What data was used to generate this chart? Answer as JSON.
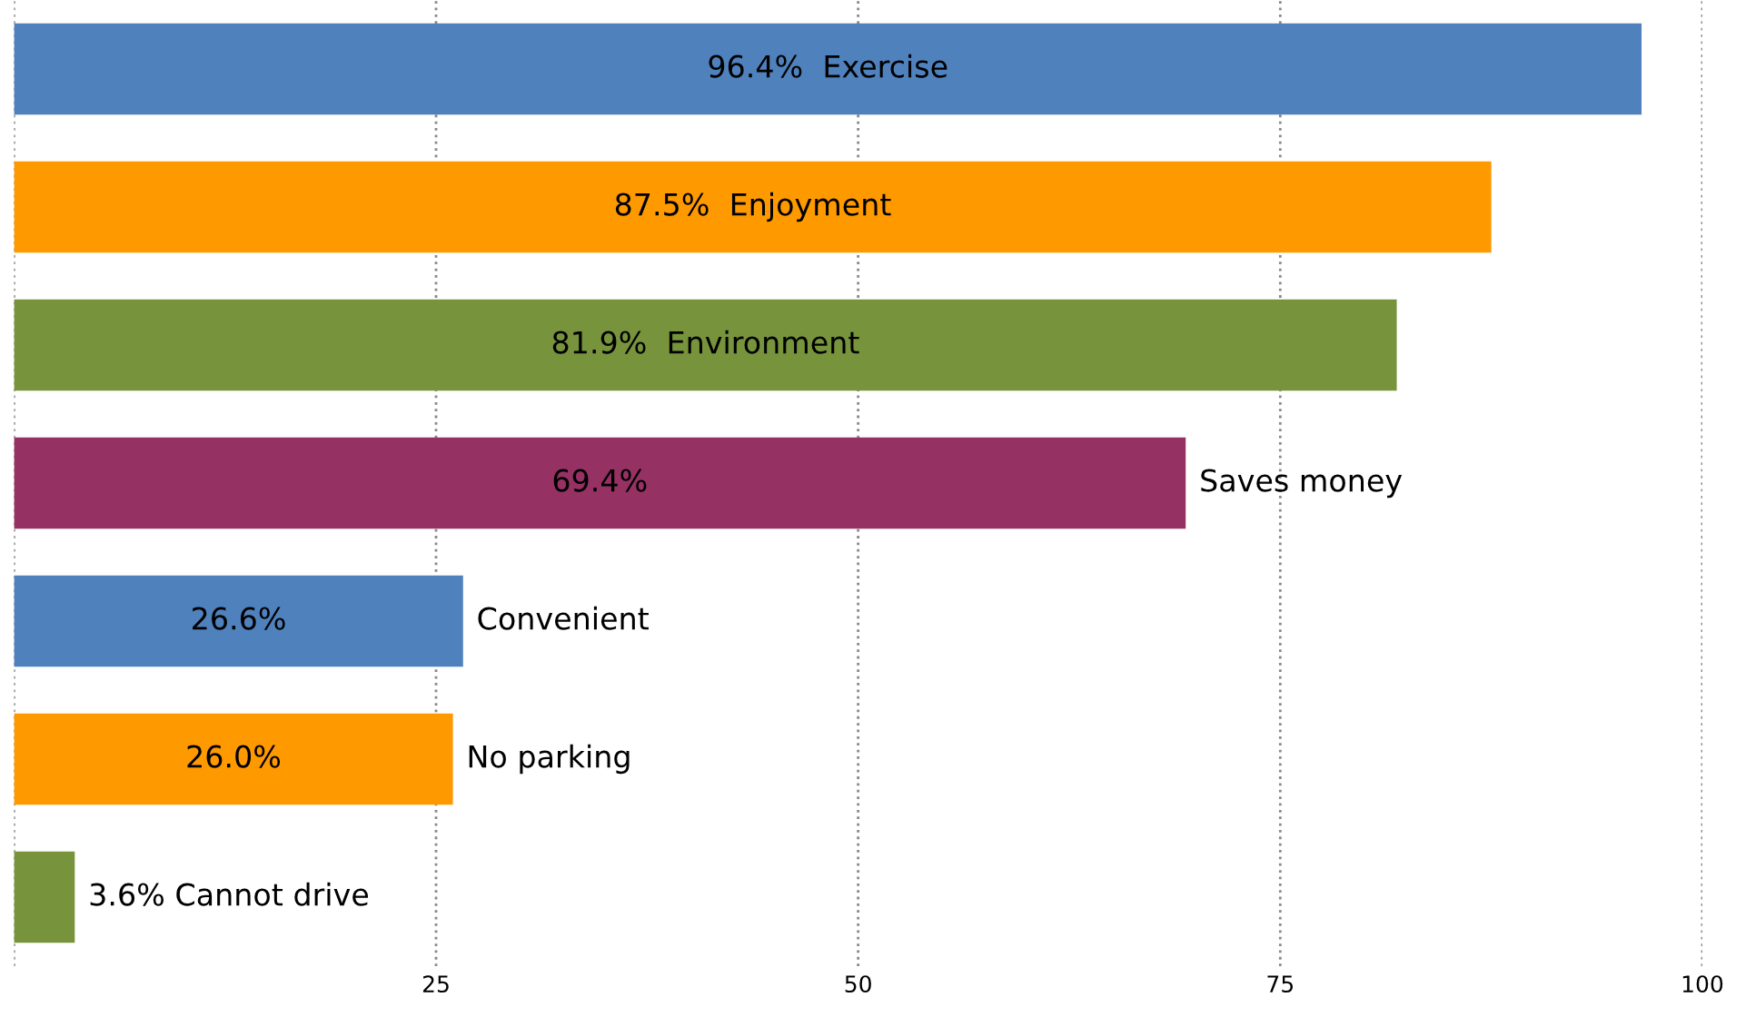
{
  "chart_data": {
    "type": "bar",
    "orientation": "horizontal",
    "categories": [
      "Exercise",
      "Enjoyment",
      "Environment",
      "Saves money",
      "Convenient",
      "No parking",
      "Cannot drive"
    ],
    "values": [
      96.4,
      87.5,
      81.9,
      69.4,
      26.6,
      26.0,
      3.6
    ],
    "value_labels": [
      "96.4%",
      "87.5%",
      "81.9%",
      "69.4%",
      "26.6%",
      "26.0%",
      "3.6%"
    ],
    "colors": [
      "#4f81bd",
      "#ff9900",
      "#77933c",
      "#953163",
      "#4f81bd",
      "#ff9900",
      "#77933c"
    ],
    "xlim": [
      0,
      100
    ],
    "xticks": [
      {
        "value": 0,
        "label": null
      },
      25,
      50,
      75,
      100
    ],
    "grid": "x"
  }
}
